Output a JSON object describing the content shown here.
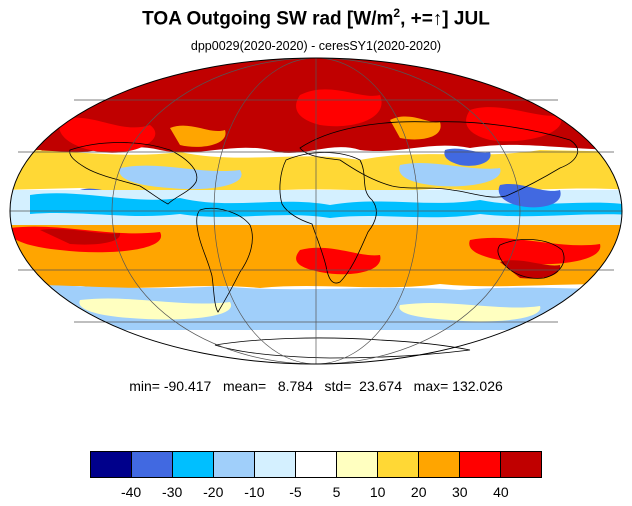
{
  "title": {
    "main": "TOA Outgoing SW rad [W/m",
    "sup": "2",
    "tail": ", +=↑] JUL"
  },
  "subtitle": "dpp0029(2020-2020) - ceresSY1(2020-2020)",
  "stats": {
    "text": "min= -90.417   mean=   8.784   std=  23.674   max= 132.026"
  },
  "chart_data": {
    "type": "heatmap",
    "projection": "mollweide",
    "title": "TOA Outgoing SW rad [W/m2, +=↑] JUL",
    "subtitle": "dpp0029(2020-2020) - ceresSY1(2020-2020)",
    "statistics": {
      "min": -90.417,
      "mean": 8.784,
      "std": 23.674,
      "max": 132.026
    },
    "colorbar": {
      "levels": [
        -40,
        -30,
        -20,
        -10,
        -5,
        5,
        10,
        20,
        30,
        40
      ],
      "labels": [
        "-40",
        "-30",
        "-20",
        "-10",
        "-5",
        "5",
        "10",
        "20",
        "30",
        "40"
      ],
      "colors": [
        "#00008b",
        "#4169e1",
        "#00bfff",
        "#a0cffa",
        "#d4f0ff",
        "#ffffff",
        "#ffffc0",
        "#ffd835",
        "#ffa500",
        "#ff0000",
        "#c00000"
      ]
    }
  }
}
